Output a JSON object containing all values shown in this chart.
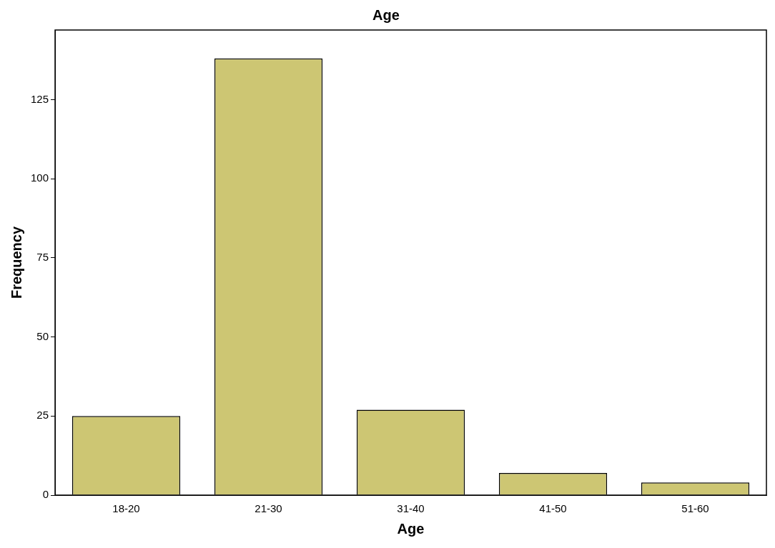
{
  "chart_data": {
    "type": "bar",
    "title": "Age",
    "xlabel": "Age",
    "ylabel": "Frequency",
    "categories": [
      "18-20",
      "21-30",
      "31-40",
      "41-50",
      "51-60"
    ],
    "values": [
      25,
      138,
      27,
      7,
      4
    ],
    "color": "#cdc673",
    "ylim": [
      0,
      147
    ],
    "yticks": [
      0,
      25,
      50,
      75,
      100,
      125
    ],
    "grid": false,
    "legend": false
  }
}
